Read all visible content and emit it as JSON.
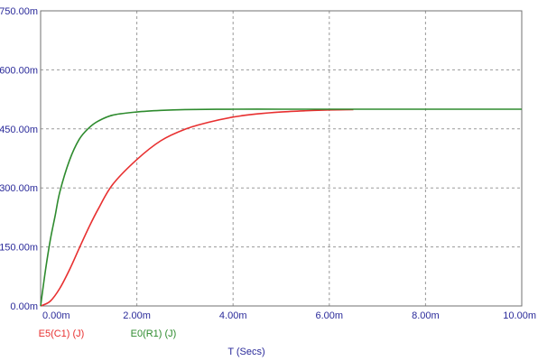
{
  "chart_data": {
    "type": "line",
    "xlabel": "T (Secs)",
    "xlim": [
      0,
      0.01
    ],
    "ylim": [
      0,
      0.75
    ],
    "x_ticks": [
      {
        "value": 0.0,
        "label": "0.00m"
      },
      {
        "value": 0.002,
        "label": "2.00m"
      },
      {
        "value": 0.004,
        "label": "4.00m"
      },
      {
        "value": 0.006,
        "label": "6.00m"
      },
      {
        "value": 0.008,
        "label": "8.00m"
      },
      {
        "value": 0.01,
        "label": "10.00m"
      }
    ],
    "y_ticks": [
      {
        "value": 0.0,
        "label": "0.00m"
      },
      {
        "value": 0.15,
        "label": "150.00m"
      },
      {
        "value": 0.3,
        "label": "300.00m"
      },
      {
        "value": 0.45,
        "label": "450.00m"
      },
      {
        "value": 0.6,
        "label": "600.00m"
      },
      {
        "value": 0.75,
        "label": "750.00m"
      }
    ],
    "grid": true,
    "legend_position": "bottom-left",
    "series": [
      {
        "name": "E5(C1) (J)",
        "color": "#e83030",
        "x": [
          0,
          0.0002,
          0.0004,
          0.0006,
          0.0008,
          0.001,
          0.0012,
          0.0015,
          0.002,
          0.0025,
          0.003,
          0.0035,
          0.004,
          0.0045,
          0.005,
          0.0055,
          0.006,
          0.0065
        ],
        "y": [
          0,
          0.012,
          0.045,
          0.092,
          0.146,
          0.199,
          0.247,
          0.309,
          0.372,
          0.42,
          0.449,
          0.467,
          0.48,
          0.488,
          0.493,
          0.496,
          0.498,
          0.499
        ]
      },
      {
        "name": "E0(R1) (J)",
        "color": "#2e8b2e",
        "x": [
          0,
          0.0001,
          0.0002,
          0.0003,
          0.0004,
          0.0006,
          0.0008,
          0.001,
          0.0012,
          0.0015,
          0.002,
          0.0025,
          0.003,
          0.004,
          0.005,
          0.006,
          0.008,
          0.01
        ],
        "y": [
          0,
          0.09,
          0.167,
          0.228,
          0.29,
          0.37,
          0.423,
          0.452,
          0.47,
          0.485,
          0.493,
          0.497,
          0.499,
          0.5,
          0.5,
          0.5,
          0.5,
          0.5
        ]
      }
    ]
  }
}
